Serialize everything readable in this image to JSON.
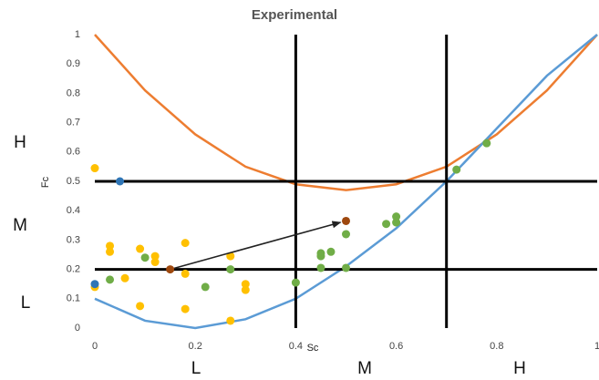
{
  "chart_data": {
    "type": "scatter",
    "title": "Experimental",
    "x_label": "Sc",
    "y_label": "Fc",
    "xlim": [
      0,
      1
    ],
    "ylim": [
      0,
      1
    ],
    "xticks": [
      0,
      0.2,
      0.4,
      0.6,
      0.8,
      1
    ],
    "yticks": [
      0,
      0.1,
      0.2,
      0.3,
      0.4,
      0.5,
      0.6,
      0.7,
      0.8,
      0.9,
      1
    ],
    "grid": false,
    "hlines": [
      0.5,
      0.2
    ],
    "vlines": [
      0.4,
      0.7
    ],
    "y_band_labels": [
      "H",
      "M",
      "L"
    ],
    "x_band_labels": [
      "L",
      "M",
      "H"
    ],
    "series": [
      {
        "kind": "line",
        "color": "#ed7d31",
        "x": [
          0,
          0.1,
          0.2,
          0.3,
          0.4,
          0.5,
          0.6,
          0.7,
          0.8,
          0.9,
          1
        ],
        "values": [
          1,
          0.81,
          0.66,
          0.55,
          0.49,
          0.47,
          0.49,
          0.55,
          0.66,
          0.81,
          1
        ]
      },
      {
        "kind": "line",
        "color": "#5b9bd5",
        "x": [
          0,
          0.1,
          0.2,
          0.3,
          0.4,
          0.5,
          0.6,
          0.7,
          0.8,
          0.9,
          1
        ],
        "values": [
          0.1,
          0.025,
          0,
          0.03,
          0.1,
          0.21,
          0.34,
          0.5,
          0.68,
          0.86,
          1
        ]
      },
      {
        "kind": "points",
        "color": "#ffc000",
        "x": [
          0,
          0.03,
          0.03,
          0.06,
          0.09,
          0.09,
          0.12,
          0.12,
          0.18,
          0.18,
          0.18,
          0.27,
          0.27,
          0.3,
          0.3,
          0
        ],
        "values": [
          0.545,
          0.28,
          0.26,
          0.17,
          0.27,
          0.075,
          0.245,
          0.225,
          0.29,
          0.185,
          0.065,
          0.245,
          0.025,
          0.15,
          0.13,
          0.14
        ]
      },
      {
        "kind": "points",
        "color": "#70ad47",
        "x": [
          0.03,
          0.1,
          0.22,
          0.27,
          0.4,
          0.45,
          0.45,
          0.45,
          0.47,
          0.5,
          0.5,
          0.58,
          0.6,
          0.6,
          0.72,
          0.78
        ],
        "values": [
          0.165,
          0.24,
          0.14,
          0.2,
          0.155,
          0.255,
          0.245,
          0.205,
          0.26,
          0.32,
          0.205,
          0.355,
          0.38,
          0.36,
          0.54,
          0.63
        ]
      },
      {
        "kind": "points",
        "color": "#2e75b6",
        "x": [
          0.05,
          0
        ],
        "values": [
          0.5,
          0.15
        ]
      },
      {
        "kind": "points",
        "color": "#9e480e",
        "arrow": true,
        "x": [
          0.15,
          0.5
        ],
        "values": [
          0.2,
          0.365
        ]
      }
    ]
  }
}
